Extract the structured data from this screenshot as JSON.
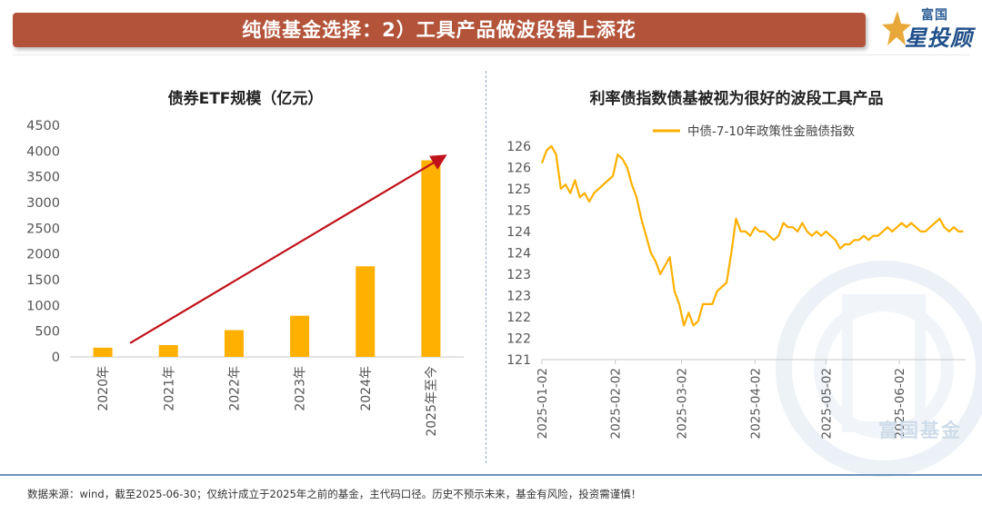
{
  "header": {
    "title": "纯债基金选择：2）工具产品做波段锦上添花",
    "brand_top": "富国",
    "brand_main": "星投顾"
  },
  "watermark": "富国基金",
  "colors": {
    "banner": "#b3543a",
    "bar": "#ffb000",
    "line": "#ffb000",
    "arrow": "#c0121b",
    "divider": "#8eaac8"
  },
  "chart_data": [
    {
      "type": "bar",
      "title": "债券ETF规模（亿元）",
      "categories": [
        "2020年",
        "2021年",
        "2022年",
        "2023年",
        "2024年",
        "2025年至今"
      ],
      "values": [
        180,
        230,
        520,
        800,
        1760,
        3820
      ],
      "ylim": [
        0,
        4500
      ],
      "yticks": [
        "0",
        "500",
        "1000",
        "1500",
        "2000",
        "2500",
        "3000",
        "3500",
        "4000",
        "4500"
      ],
      "ytick_values": [
        0,
        500,
        1000,
        1500,
        2000,
        2500,
        3000,
        3500,
        4000,
        4500
      ],
      "annotation": "arrow",
      "grid": false
    },
    {
      "type": "line",
      "title": "利率债指数债基被视为很好的波段工具产品",
      "ylim": [
        121,
        126.4
      ],
      "yticks": [
        "121",
        "122",
        "122",
        "123",
        "123",
        "124",
        "124",
        "125",
        "125",
        "126",
        "126"
      ],
      "ytick_values": [
        121,
        121.5,
        122,
        122.5,
        123,
        123.5,
        124,
        124.5,
        125,
        125.5,
        126
      ],
      "xticks": [
        "2025-01-02",
        "2025-02-02",
        "2025-03-02",
        "2025-04-02",
        "2025-05-02",
        "2025-06-02"
      ],
      "xtick_values": [
        0,
        31,
        59,
        90,
        120,
        151
      ],
      "xlim": [
        0,
        179
      ],
      "legend": "top",
      "grid": false,
      "series": [
        {
          "name": "中债-7-10年政策性金融债指数",
          "x": [
            0,
            2,
            4,
            6,
            8,
            10,
            12,
            14,
            16,
            18,
            20,
            22,
            24,
            26,
            28,
            30,
            32,
            34,
            36,
            38,
            40,
            42,
            44,
            46,
            48,
            50,
            52,
            54,
            56,
            58,
            60,
            62,
            64,
            66,
            68,
            70,
            72,
            74,
            76,
            78,
            80,
            82,
            84,
            86,
            88,
            90,
            92,
            94,
            96,
            98,
            100,
            102,
            104,
            106,
            108,
            110,
            112,
            114,
            116,
            118,
            120,
            122,
            124,
            126,
            128,
            130,
            132,
            134,
            136,
            138,
            140,
            142,
            144,
            146,
            148,
            150,
            152,
            154,
            156,
            158,
            160,
            162,
            164,
            166,
            168,
            170,
            172,
            174,
            176,
            178
          ],
          "y": [
            125.6,
            125.9,
            126.0,
            125.8,
            125.0,
            125.1,
            124.9,
            125.2,
            124.8,
            124.9,
            124.7,
            124.9,
            125.0,
            125.1,
            125.2,
            125.3,
            125.8,
            125.7,
            125.5,
            125.1,
            124.8,
            124.3,
            123.9,
            123.5,
            123.3,
            123.0,
            123.2,
            123.4,
            122.6,
            122.3,
            121.8,
            122.1,
            121.8,
            121.9,
            122.3,
            122.3,
            122.3,
            122.6,
            122.7,
            122.8,
            123.5,
            124.3,
            124.0,
            124.0,
            123.9,
            124.1,
            124.0,
            124.0,
            123.9,
            123.8,
            123.9,
            124.2,
            124.1,
            124.1,
            124.0,
            124.2,
            124.0,
            123.9,
            124.0,
            123.9,
            124.0,
            123.9,
            123.8,
            123.6,
            123.7,
            123.7,
            123.8,
            123.8,
            123.9,
            123.8,
            123.9,
            123.9,
            124.0,
            124.1,
            124.0,
            124.1,
            124.2,
            124.1,
            124.2,
            124.1,
            124.0,
            124.0,
            124.1,
            124.2,
            124.3,
            124.1,
            124.0,
            124.1,
            124.0,
            124.0
          ]
        }
      ]
    }
  ],
  "footnote": "数据来源：wind，截至2025-06-30；仅统计成立于2025年之前的基金，主代码口径。历史不预示未来，基金有风险，投资需谨慎！"
}
